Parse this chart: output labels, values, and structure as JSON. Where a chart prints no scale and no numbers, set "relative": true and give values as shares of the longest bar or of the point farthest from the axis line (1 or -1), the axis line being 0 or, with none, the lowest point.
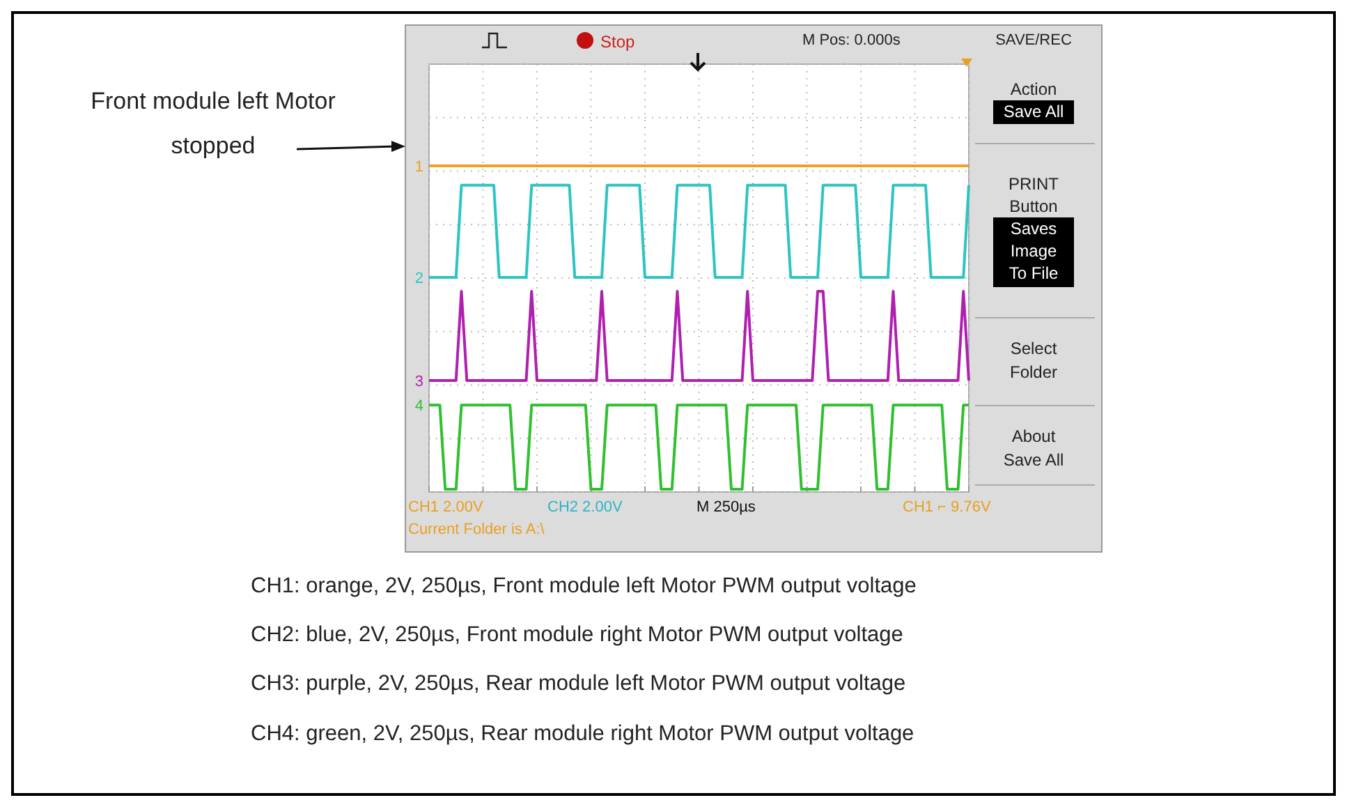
{
  "chart_data": {
    "type": "line",
    "relative": true,
    "categories": [
      null,
      null,
      null,
      null,
      null,
      null,
      null,
      null,
      null,
      null,
      null,
      null,
      null,
      null,
      null,
      null,
      null,
      null,
      null,
      null,
      null,
      null,
      null,
      null,
      null,
      null,
      null,
      null,
      null,
      null,
      null,
      null,
      null,
      null,
      null,
      null,
      null,
      null,
      null,
      null,
      null,
      null,
      null,
      null,
      null,
      null,
      null,
      null,
      null,
      null,
      null,
      null,
      null,
      null,
      null,
      null,
      null,
      null,
      null,
      null,
      null,
      null,
      null,
      null,
      null,
      null,
      null,
      null,
      null,
      null,
      null,
      null,
      null,
      null,
      null,
      null,
      null,
      null,
      null,
      null,
      null,
      null,
      null,
      null,
      null,
      null,
      null,
      null,
      null,
      null,
      null,
      null,
      null,
      null,
      null,
      null,
      null,
      null,
      null,
      null,
      null
    ],
    "grid": true,
    "marker": "none",
    "line_style": "solid",
    "series": [
      {
        "name": "1",
        "color": "#f0a020",
        "values": [
          1,
          1,
          1,
          1,
          1,
          1,
          1,
          1,
          1,
          1,
          1,
          1,
          1,
          1,
          1,
          1,
          1,
          1,
          1,
          1,
          1,
          1,
          1,
          1,
          1,
          1,
          1,
          1,
          1,
          1,
          1,
          1,
          1,
          1,
          1,
          1,
          1,
          1,
          1,
          1,
          1,
          1,
          1,
          1,
          1,
          1,
          1,
          1,
          1,
          1,
          1,
          1,
          1,
          1,
          1,
          1,
          1,
          1,
          1,
          1,
          1,
          1,
          1,
          1,
          1,
          1,
          1,
          1,
          1,
          1,
          1,
          1,
          1,
          1,
          1,
          1,
          1,
          1,
          1,
          1,
          1,
          1,
          1,
          1,
          1,
          1,
          1,
          1,
          1,
          1,
          1,
          1,
          1,
          1,
          1,
          1,
          1,
          1,
          1,
          1,
          1
        ]
      },
      {
        "name": "2",
        "color": "#2ec4c4",
        "values": [
          0.655,
          0.655,
          0.655,
          0.655,
          0.655,
          0.655,
          0.94,
          0.94,
          0.94,
          0.94,
          0.94,
          0.94,
          0.94,
          0.655,
          0.655,
          0.655,
          0.655,
          0.655,
          0.655,
          0.94,
          0.94,
          0.94,
          0.94,
          0.94,
          0.94,
          0.94,
          0.94,
          0.655,
          0.655,
          0.655,
          0.655,
          0.655,
          0.655,
          0.94,
          0.94,
          0.94,
          0.94,
          0.94,
          0.94,
          0.94,
          0.655,
          0.655,
          0.655,
          0.655,
          0.655,
          0.655,
          0.94,
          0.94,
          0.94,
          0.94,
          0.94,
          0.94,
          0.94,
          0.655,
          0.655,
          0.655,
          0.655,
          0.655,
          0.655,
          0.94,
          0.94,
          0.94,
          0.94,
          0.94,
          0.94,
          0.94,
          0.94,
          0.655,
          0.655,
          0.655,
          0.655,
          0.655,
          0.655,
          0.94,
          0.94,
          0.94,
          0.94,
          0.94,
          0.94,
          0.94,
          0.655,
          0.655,
          0.655,
          0.655,
          0.655,
          0.655,
          0.94,
          0.94,
          0.94,
          0.94,
          0.94,
          0.94,
          0.94,
          0.655,
          0.655,
          0.655,
          0.655,
          0.655,
          0.655,
          0.655,
          0.94
        ]
      },
      {
        "name": "3",
        "color": "#b020b0",
        "values": [
          0.336,
          0.336,
          0.336,
          0.336,
          0.336,
          0.336,
          0.612,
          0.336,
          0.336,
          0.336,
          0.336,
          0.336,
          0.336,
          0.336,
          0.336,
          0.336,
          0.336,
          0.336,
          0.336,
          0.612,
          0.336,
          0.336,
          0.336,
          0.336,
          0.336,
          0.336,
          0.336,
          0.336,
          0.336,
          0.336,
          0.336,
          0.336,
          0.612,
          0.336,
          0.336,
          0.336,
          0.336,
          0.336,
          0.336,
          0.336,
          0.336,
          0.336,
          0.336,
          0.336,
          0.336,
          0.336,
          0.612,
          0.336,
          0.336,
          0.336,
          0.336,
          0.336,
          0.336,
          0.336,
          0.336,
          0.336,
          0.336,
          0.336,
          0.336,
          0.612,
          0.336,
          0.336,
          0.336,
          0.336,
          0.336,
          0.336,
          0.336,
          0.336,
          0.336,
          0.336,
          0.336,
          0.336,
          0.612,
          0.612,
          0.336,
          0.336,
          0.336,
          0.336,
          0.336,
          0.336,
          0.336,
          0.336,
          0.336,
          0.336,
          0.336,
          0.336,
          0.612,
          0.336,
          0.336,
          0.336,
          0.336,
          0.336,
          0.336,
          0.336,
          0.336,
          0.336,
          0.336,
          0.336,
          0.336,
          0.612,
          0.336
        ]
      },
      {
        "name": "4",
        "color": "#30c030",
        "values": [
          0.26,
          0.26,
          0.26,
          0,
          0,
          0,
          0.26,
          0.26,
          0.26,
          0.26,
          0.26,
          0.26,
          0.26,
          0.26,
          0.26,
          0.26,
          0,
          0,
          0,
          0.26,
          0.26,
          0.26,
          0.26,
          0.26,
          0.26,
          0.26,
          0.26,
          0.26,
          0.26,
          0.26,
          0,
          0,
          0,
          0.26,
          0.26,
          0.26,
          0.26,
          0.26,
          0.26,
          0.26,
          0.26,
          0.26,
          0.26,
          0,
          0,
          0,
          0.26,
          0.26,
          0.26,
          0.26,
          0.26,
          0.26,
          0.26,
          0.26,
          0.26,
          0.26,
          0,
          0,
          0,
          0.26,
          0.26,
          0.26,
          0.26,
          0.26,
          0.26,
          0.26,
          0.26,
          0.26,
          0.26,
          0,
          0,
          0,
          0,
          0.26,
          0.26,
          0.26,
          0.26,
          0.26,
          0.26,
          0.26,
          0.26,
          0.26,
          0.26,
          0,
          0,
          0,
          0.26,
          0.26,
          0.26,
          0.26,
          0.26,
          0.26,
          0.26,
          0.26,
          0.26,
          0.26,
          0,
          0,
          0,
          0.26,
          0.26
        ]
      }
    ],
    "annotations": [
      "Front module left Motor\nstopped",
      "Stop",
      "M Pos: 0.000s",
      "SAVE/REC",
      "Action",
      "Save All",
      "PRINT\nButton",
      "Saves\nImage\nTo File",
      "Select\nFolder",
      "About\nSave All",
      "CH1  2.00V",
      "CH2  2.00V",
      "M 250µs",
      "CH1 ⌐ 9.76V",
      "Current Folder is A:\\",
      "CH1: orange, 2V, 250µs, Front module left Motor PWM output voltage",
      "CH2: blue, 2V, 250µs, Front module right Motor PWM output voltage",
      "CH3: purple, 2V, 250µs, Rear module left Motor PWM output voltage",
      "CH4: green, 2V, 250µs, Rear module right Motor PWM output voltage"
    ]
  }
}
